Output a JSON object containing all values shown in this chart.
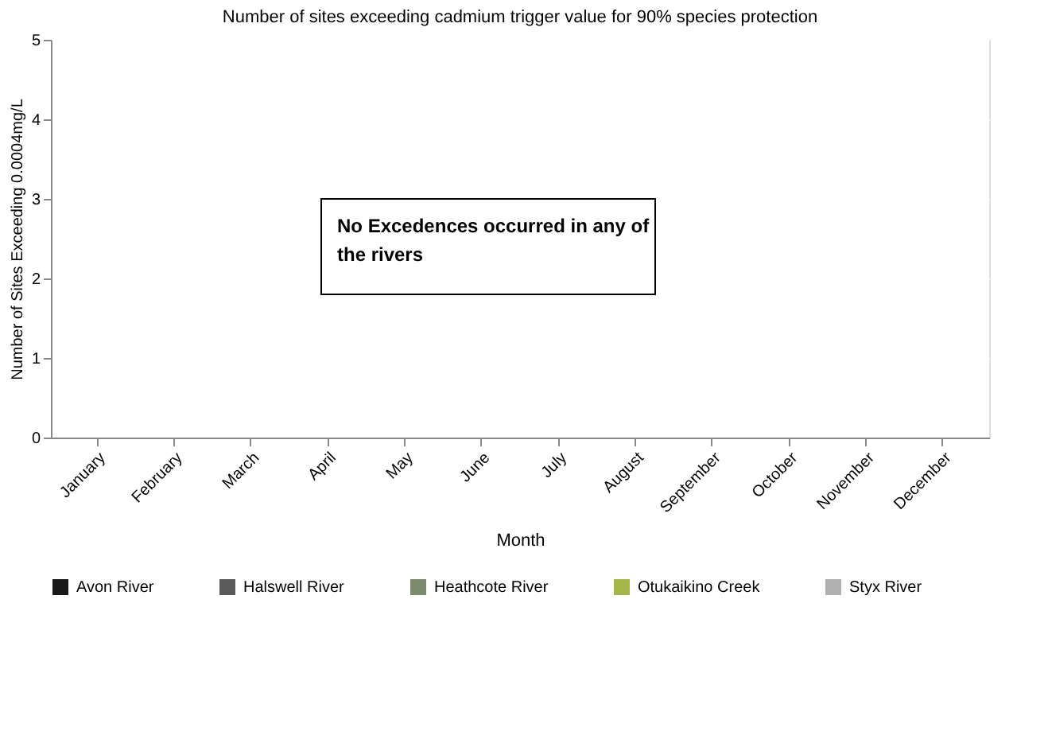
{
  "chart_data": {
    "type": "bar",
    "title": "Number of sites exceeding cadmium trigger value for 90% species protection",
    "xlabel": "Month",
    "ylabel": "Number of Sites Exceeding 0.0004mg/L",
    "categories": [
      "January",
      "February",
      "March",
      "April",
      "May",
      "June",
      "July",
      "August",
      "September",
      "October",
      "November",
      "December"
    ],
    "series": [
      {
        "name": "Avon River",
        "color": "#1a1a1a",
        "values": [
          0,
          0,
          0,
          0,
          0,
          0,
          0,
          0,
          0,
          0,
          0,
          0
        ]
      },
      {
        "name": "Halswell River",
        "color": "#5a5a5a",
        "values": [
          0,
          0,
          0,
          0,
          0,
          0,
          0,
          0,
          0,
          0,
          0,
          0
        ]
      },
      {
        "name": "Heathcote River",
        "color": "#7d8c6e",
        "values": [
          0,
          0,
          0,
          0,
          0,
          0,
          0,
          0,
          0,
          0,
          0,
          0
        ]
      },
      {
        "name": "Otukaikino Creek",
        "color": "#a4b84a",
        "values": [
          0,
          0,
          0,
          0,
          0,
          0,
          0,
          0,
          0,
          0,
          0,
          0
        ]
      },
      {
        "name": "Styx River",
        "color": "#b0b0b0",
        "values": [
          0,
          0,
          0,
          0,
          0,
          0,
          0,
          0,
          0,
          0,
          0,
          0
        ]
      }
    ],
    "ylim": [
      0,
      5
    ],
    "yticks": [
      0,
      1,
      2,
      3,
      4,
      5
    ],
    "grid": "y",
    "legend": "bottom",
    "annotations": [
      "No Excedences occurred in any of the rivers"
    ]
  }
}
